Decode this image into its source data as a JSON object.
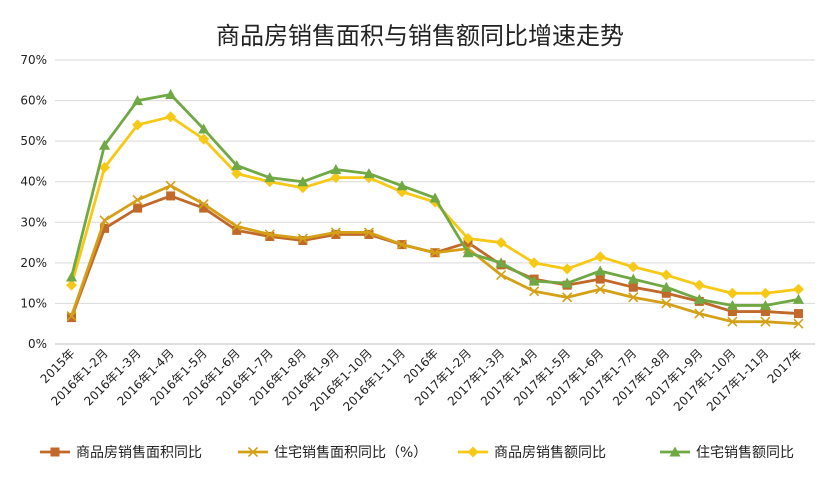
{
  "chart_data": {
    "type": "line",
    "title": "商品房销售面积与销售额同比增速走势",
    "categories": [
      "2015年",
      "2016年1-2月",
      "2016年1-3月",
      "2016年1-4月",
      "2016年1-5月",
      "2016年1-6月",
      "2016年1-7月",
      "2016年1-8月",
      "2016年1-9月",
      "2016年1-10月",
      "2016年1-11月",
      "2016年",
      "2017年1-2月",
      "2017年1-3月",
      "2017年1-4月",
      "2017年1-5月",
      "2017年1-6月",
      "2017年1-7月",
      "2017年1-8月",
      "2017年1-9月",
      "2017年1-10月",
      "2017年1-11月",
      "2017年"
    ],
    "y_ticks": [
      "0%",
      "10%",
      "20%",
      "30%",
      "40%",
      "50%",
      "60%",
      "70%"
    ],
    "ylim": [
      0,
      70
    ],
    "grid": true,
    "legend_position": "bottom",
    "series": [
      {
        "name": "商品房销售面积同比",
        "color": "#c0692a",
        "marker": "square",
        "values": [
          6.5,
          28.5,
          33.5,
          36.5,
          33.5,
          28,
          26.5,
          25.5,
          27,
          27,
          24.5,
          22.5,
          25,
          19.5,
          16,
          14.5,
          16,
          14,
          12.5,
          10.5,
          8,
          8,
          7.5
        ]
      },
      {
        "name": "住宅销售面积同比（%）",
        "color": "#d4a017",
        "marker": "x",
        "values": [
          6.9,
          30.5,
          35.5,
          39,
          34.5,
          29,
          27,
          26,
          27.5,
          27.5,
          24.5,
          22.5,
          23.5,
          17,
          13,
          11.5,
          13.5,
          11.5,
          10,
          7.5,
          5.5,
          5.5,
          5
        ]
      },
      {
        "name": "商品房销售额同比",
        "color": "#f6c917",
        "marker": "diamond",
        "values": [
          14.5,
          43.5,
          54,
          56,
          50.5,
          42,
          40,
          38.5,
          41,
          41,
          37.5,
          35,
          26,
          25,
          20,
          18.5,
          21.5,
          19,
          17,
          14.5,
          12.5,
          12.5,
          13.5
        ]
      },
      {
        "name": "住宅销售额同比",
        "color": "#70a844",
        "marker": "triangle",
        "values": [
          16.5,
          49,
          60,
          61.5,
          53,
          44,
          41,
          40,
          43,
          42,
          39,
          36,
          22.5,
          20,
          15.5,
          15,
          18,
          16,
          14,
          11,
          9.5,
          9.5,
          11
        ]
      }
    ]
  }
}
